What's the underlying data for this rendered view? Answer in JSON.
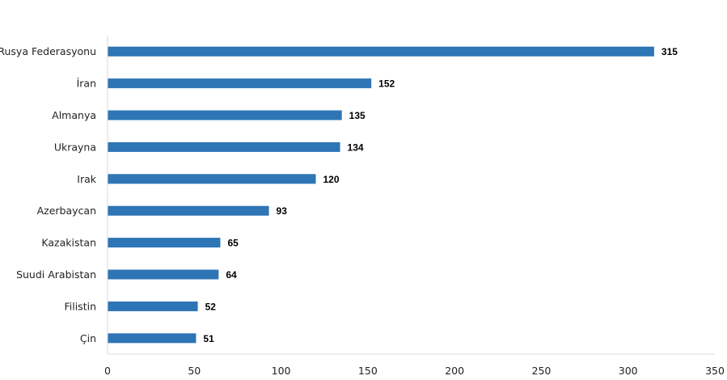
{
  "chart_data": {
    "type": "bar",
    "orientation": "horizontal",
    "title": "",
    "xlabel": "",
    "ylabel": "",
    "categories": [
      "Rusya Federasyonu",
      "İran",
      "Almanya",
      "Ukrayna",
      "Irak",
      "Azerbaycan",
      "Kazakistan",
      "Suudi Arabistan",
      "Filistin",
      "Çin"
    ],
    "values": [
      315,
      152,
      135,
      134,
      120,
      93,
      65,
      64,
      52,
      51
    ],
    "data_labels": [
      "315",
      "152",
      "135",
      "134",
      "120",
      "93",
      "65",
      "64",
      "52",
      "51"
    ],
    "xlim": [
      0,
      350
    ],
    "x_ticks": [
      0,
      50,
      100,
      150,
      200,
      250,
      300,
      350
    ],
    "x_tick_labels": [
      "0",
      "50",
      "100",
      "150",
      "200",
      "250",
      "300",
      "350"
    ],
    "grid": false,
    "legend": "none",
    "bar_color": "#2E75B6",
    "axis_color": "#D9D9D9"
  }
}
